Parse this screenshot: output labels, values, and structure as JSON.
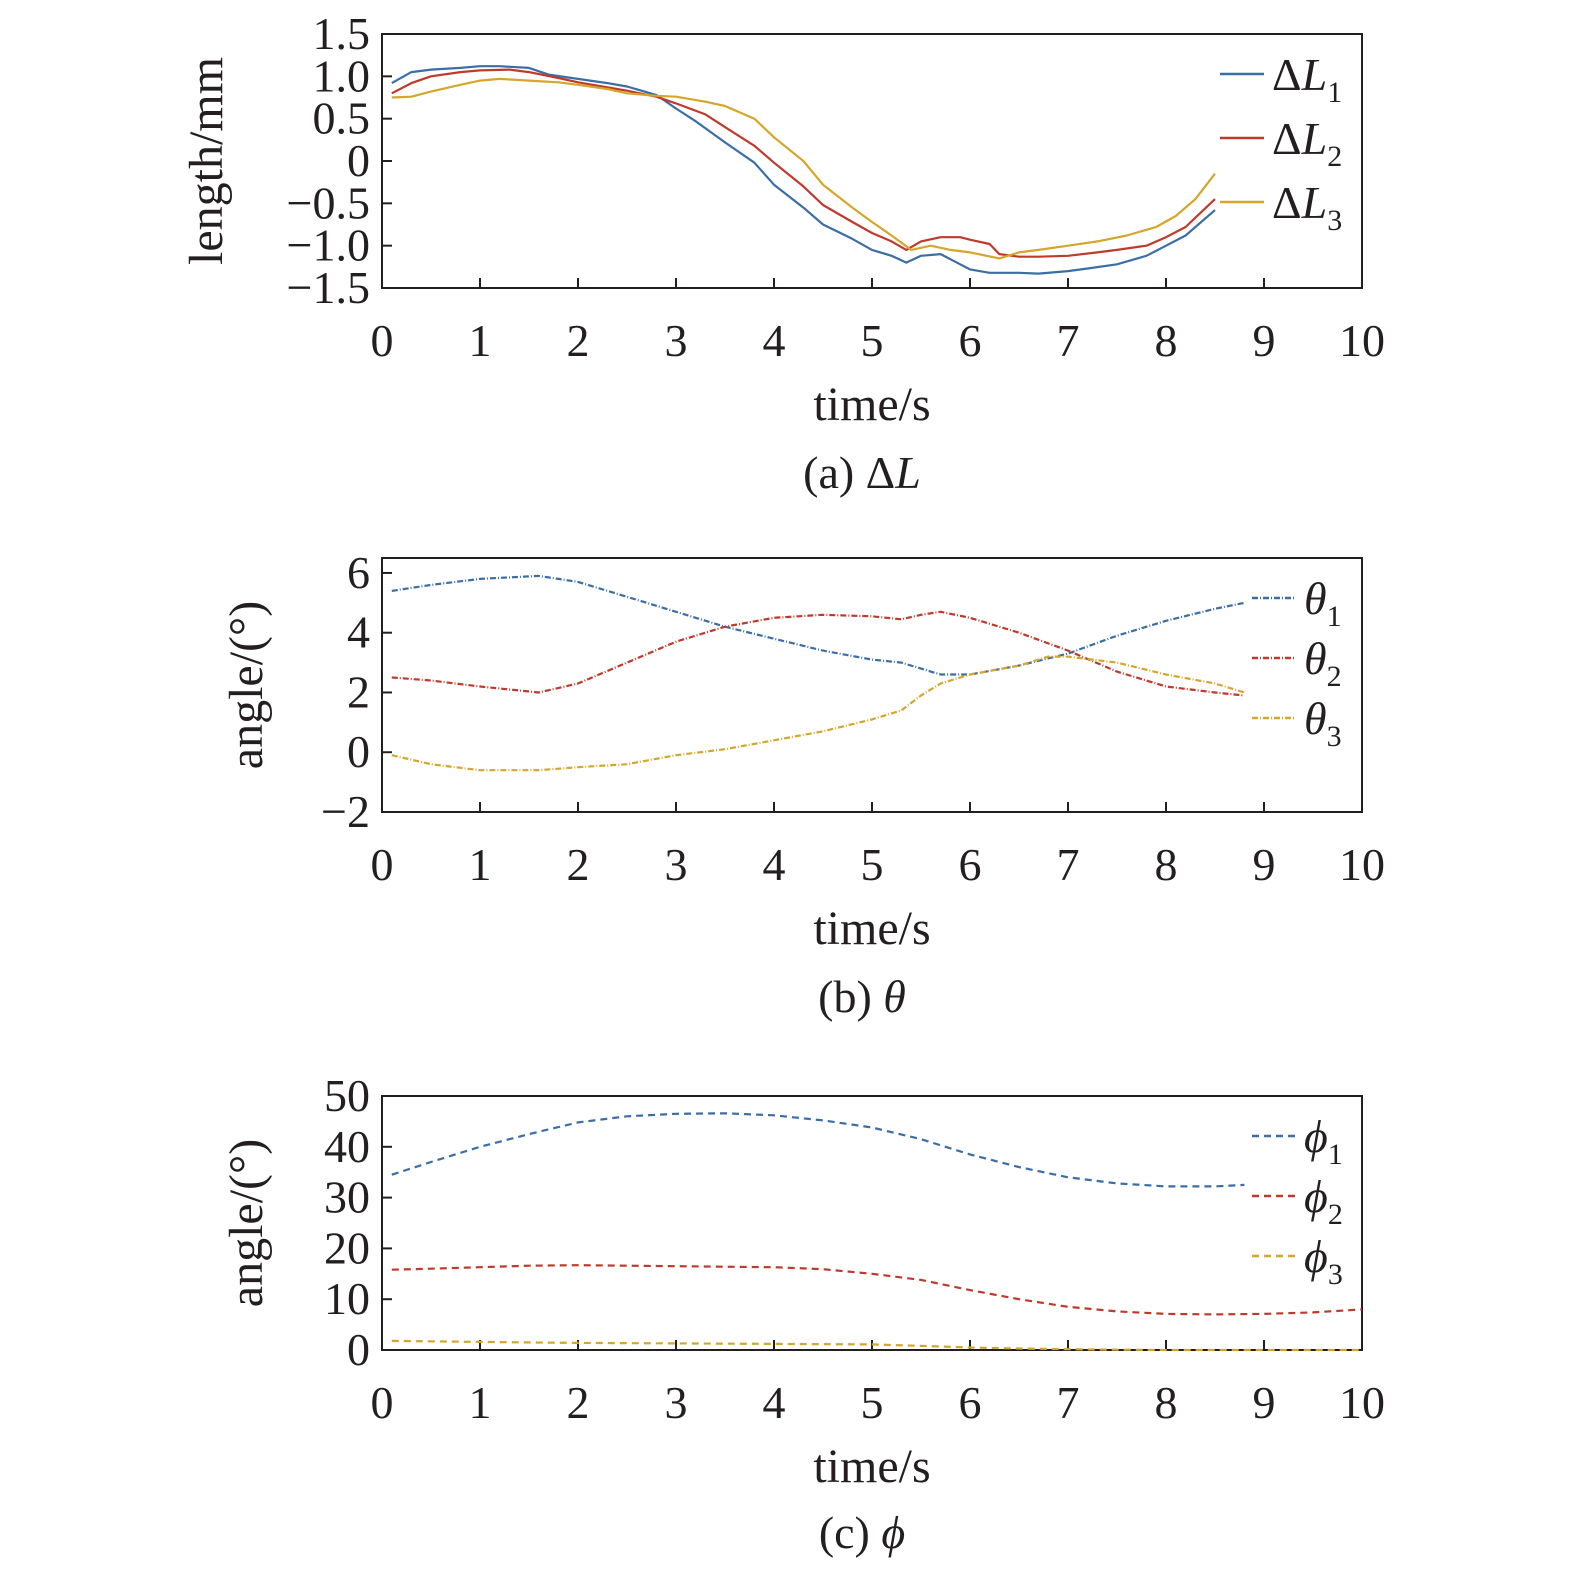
{
  "chart_data": [
    {
      "type": "line",
      "caption_prefix": "(a) Δ",
      "caption_var": "L",
      "xlabel": "time/s",
      "ylabel": "length/mm",
      "xlim": [
        0,
        10
      ],
      "ylim": [
        -1.5,
        1.5
      ],
      "xticks": [
        "0",
        "1",
        "2",
        "3",
        "4",
        "5",
        "6",
        "7",
        "8",
        "9",
        "10"
      ],
      "yticks": [
        "1.5",
        "1.0",
        "0.5",
        "0",
        "−0.5",
        "−1.0",
        "−1.5"
      ],
      "ytick_values": [
        1.5,
        1.0,
        0.5,
        0,
        -0.5,
        -1.0,
        -1.5
      ],
      "legend_position": "top-right",
      "line_style": "solid",
      "series": [
        {
          "name_prefix": "Δ",
          "name_var": "L",
          "name_sub": "1",
          "color": "#3a6ea5",
          "x": [
            0.1,
            0.3,
            0.5,
            0.8,
            1.0,
            1.2,
            1.5,
            1.7,
            2.0,
            2.3,
            2.5,
            2.8,
            3.0,
            3.2,
            3.5,
            3.8,
            4.0,
            4.3,
            4.5,
            4.8,
            5.0,
            5.2,
            5.35,
            5.5,
            5.7,
            5.9,
            6.0,
            6.2,
            6.5,
            6.7,
            7.0,
            7.2,
            7.5,
            7.8,
            8.0,
            8.2,
            8.5
          ],
          "y": [
            0.92,
            1.05,
            1.08,
            1.1,
            1.12,
            1.12,
            1.1,
            1.02,
            0.97,
            0.92,
            0.88,
            0.78,
            0.62,
            0.47,
            0.22,
            -0.02,
            -0.28,
            -0.55,
            -0.75,
            -0.92,
            -1.05,
            -1.12,
            -1.2,
            -1.12,
            -1.1,
            -1.22,
            -1.28,
            -1.32,
            -1.32,
            -1.33,
            -1.3,
            -1.27,
            -1.22,
            -1.12,
            -1.0,
            -0.88,
            -0.58
          ]
        },
        {
          "name_prefix": "Δ",
          "name_var": "L",
          "name_sub": "2",
          "color": "#c0392b",
          "x": [
            0.1,
            0.3,
            0.5,
            0.8,
            1.0,
            1.3,
            1.5,
            1.8,
            2.0,
            2.3,
            2.5,
            2.8,
            3.0,
            3.3,
            3.5,
            3.8,
            4.0,
            4.3,
            4.5,
            4.8,
            5.0,
            5.2,
            5.35,
            5.5,
            5.7,
            5.9,
            6.0,
            6.2,
            6.3,
            6.5,
            6.7,
            7.0,
            7.3,
            7.5,
            7.8,
            8.0,
            8.2,
            8.5
          ],
          "y": [
            0.8,
            0.92,
            1.0,
            1.05,
            1.07,
            1.08,
            1.05,
            0.98,
            0.93,
            0.87,
            0.83,
            0.76,
            0.68,
            0.55,
            0.4,
            0.18,
            -0.02,
            -0.3,
            -0.52,
            -0.72,
            -0.85,
            -0.95,
            -1.05,
            -0.95,
            -0.9,
            -0.9,
            -0.93,
            -0.98,
            -1.1,
            -1.13,
            -1.13,
            -1.12,
            -1.08,
            -1.05,
            -1.0,
            -0.9,
            -0.78,
            -0.45
          ]
        },
        {
          "name_prefix": "Δ",
          "name_var": "L",
          "name_sub": "3",
          "color": "#d4a62a",
          "x": [
            0.1,
            0.3,
            0.5,
            0.8,
            1.0,
            1.2,
            1.5,
            1.8,
            2.0,
            2.3,
            2.5,
            2.8,
            3.0,
            3.3,
            3.5,
            3.8,
            4.0,
            4.3,
            4.5,
            4.8,
            5.0,
            5.2,
            5.4,
            5.6,
            5.8,
            6.0,
            6.3,
            6.5,
            6.7,
            7.0,
            7.3,
            7.6,
            7.9,
            8.1,
            8.3,
            8.5
          ],
          "y": [
            0.75,
            0.76,
            0.82,
            0.9,
            0.95,
            0.97,
            0.95,
            0.93,
            0.9,
            0.85,
            0.8,
            0.77,
            0.76,
            0.7,
            0.65,
            0.5,
            0.28,
            0.0,
            -0.28,
            -0.55,
            -0.72,
            -0.88,
            -1.05,
            -1.0,
            -1.05,
            -1.08,
            -1.15,
            -1.08,
            -1.05,
            -1.0,
            -0.95,
            -0.88,
            -0.78,
            -0.65,
            -0.45,
            -0.15
          ]
        }
      ]
    },
    {
      "type": "line",
      "caption_prefix": "(b) ",
      "caption_var": "θ",
      "xlabel": "time/s",
      "ylabel": "angle/(°)",
      "xlim": [
        0,
        10
      ],
      "ylim": [
        -2,
        6.5
      ],
      "xticks": [
        "0",
        "1",
        "2",
        "3",
        "4",
        "5",
        "6",
        "7",
        "8",
        "9",
        "10"
      ],
      "yticks": [
        "6",
        "4",
        "2",
        "0",
        "−2"
      ],
      "ytick_values": [
        6,
        4,
        2,
        0,
        -2
      ],
      "legend_position": "top-right",
      "line_style": "dash-dot",
      "series": [
        {
          "name_prefix": "",
          "name_var": "θ",
          "name_sub": "1",
          "color": "#3a6ea5",
          "x": [
            0.1,
            0.5,
            1.0,
            1.6,
            2.0,
            2.5,
            3.0,
            3.5,
            4.0,
            4.5,
            5.0,
            5.3,
            5.5,
            5.7,
            6.0,
            6.5,
            7.0,
            7.5,
            8.0,
            8.5,
            8.8
          ],
          "y": [
            5.4,
            5.6,
            5.8,
            5.9,
            5.7,
            5.2,
            4.7,
            4.2,
            3.8,
            3.4,
            3.1,
            3.0,
            2.8,
            2.6,
            2.6,
            2.9,
            3.3,
            3.9,
            4.4,
            4.8,
            5.0
          ]
        },
        {
          "name_prefix": "",
          "name_var": "θ",
          "name_sub": "2",
          "color": "#c0392b",
          "x": [
            0.1,
            0.5,
            1.0,
            1.6,
            2.0,
            2.5,
            3.0,
            3.5,
            4.0,
            4.5,
            5.0,
            5.3,
            5.5,
            5.7,
            6.0,
            6.5,
            7.0,
            7.5,
            8.0,
            8.5,
            8.8
          ],
          "y": [
            2.5,
            2.4,
            2.2,
            2.0,
            2.3,
            3.0,
            3.7,
            4.2,
            4.5,
            4.6,
            4.55,
            4.45,
            4.6,
            4.7,
            4.5,
            4.0,
            3.4,
            2.7,
            2.2,
            2.0,
            1.9
          ]
        },
        {
          "name_prefix": "",
          "name_var": "θ",
          "name_sub": "3",
          "color": "#d4a62a",
          "x": [
            0.1,
            0.5,
            1.0,
            1.3,
            1.6,
            2.0,
            2.5,
            3.0,
            3.5,
            4.0,
            4.5,
            5.0,
            5.3,
            5.5,
            5.7,
            6.0,
            6.5,
            6.8,
            7.0,
            7.5,
            8.0,
            8.5,
            8.8
          ],
          "y": [
            -0.1,
            -0.4,
            -0.6,
            -0.6,
            -0.6,
            -0.5,
            -0.4,
            -0.1,
            0.1,
            0.4,
            0.7,
            1.1,
            1.4,
            1.9,
            2.3,
            2.6,
            2.9,
            3.2,
            3.2,
            3.0,
            2.6,
            2.3,
            2.0
          ]
        }
      ]
    },
    {
      "type": "line",
      "caption_prefix": "(c) ",
      "caption_var": "ϕ",
      "xlabel": "time/s",
      "ylabel": "angle/(°)",
      "xlim": [
        0,
        10
      ],
      "ylim": [
        0,
        50
      ],
      "xticks": [
        "0",
        "1",
        "2",
        "3",
        "4",
        "5",
        "6",
        "7",
        "8",
        "9",
        "10"
      ],
      "yticks": [
        "50",
        "40",
        "30",
        "20",
        "10",
        "0"
      ],
      "ytick_values": [
        50,
        40,
        30,
        20,
        10,
        0
      ],
      "legend_position": "top-right",
      "line_style": "dashed",
      "series": [
        {
          "name_prefix": "",
          "name_var": "ϕ",
          "name_sub": "1",
          "color": "#3a6ea5",
          "x": [
            0.1,
            0.5,
            1.0,
            1.5,
            2.0,
            2.5,
            3.0,
            3.5,
            4.0,
            4.5,
            5.0,
            5.5,
            6.0,
            6.5,
            7.0,
            7.5,
            8.0,
            8.5,
            8.8
          ],
          "y": [
            34.5,
            37,
            40,
            42.5,
            44.8,
            46,
            46.5,
            46.6,
            46.2,
            45.2,
            43.8,
            41.5,
            38.5,
            36,
            34,
            32.8,
            32.2,
            32.2,
            32.5
          ]
        },
        {
          "name_prefix": "",
          "name_var": "ϕ",
          "name_sub": "2",
          "color": "#c0392b",
          "x": [
            0.1,
            0.5,
            1.0,
            1.5,
            2.0,
            2.5,
            3.0,
            3.5,
            4.0,
            4.5,
            5.0,
            5.5,
            6.0,
            6.5,
            7.0,
            7.5,
            8.0,
            8.5,
            9.0,
            9.5,
            10.0
          ],
          "y": [
            15.8,
            16,
            16.3,
            16.6,
            16.7,
            16.6,
            16.5,
            16.4,
            16.3,
            15.9,
            15,
            13.8,
            11.8,
            10,
            8.5,
            7.6,
            7.1,
            7.0,
            7.1,
            7.4,
            8.0
          ]
        },
        {
          "name_prefix": "",
          "name_var": "ϕ",
          "name_sub": "3",
          "color": "#d4a62a",
          "x": [
            0.1,
            1.0,
            2.0,
            3.0,
            4.0,
            5.0,
            5.5,
            6.0,
            6.5,
            7.0,
            7.5,
            8.0,
            9.0,
            10.0
          ],
          "y": [
            1.8,
            1.6,
            1.4,
            1.3,
            1.2,
            1.1,
            0.8,
            0.5,
            0.3,
            0.15,
            0.05,
            0.0,
            0.0,
            0.0
          ]
        }
      ]
    }
  ]
}
